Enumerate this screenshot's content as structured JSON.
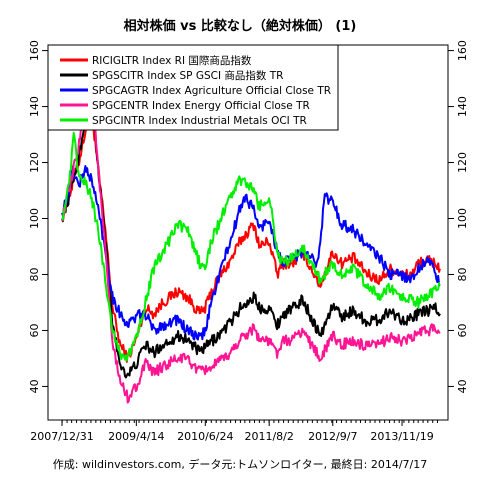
{
  "chart_data": {
    "type": "line",
    "title": "相対株価 vs 比較なし（絶対株価） (1)",
    "footer": "作成: wildinvestors.com, データ元:トムソンロイター, 最終日: 2014/7/17",
    "x_tick_labels": [
      "2007/12/31",
      "2009/4/14",
      "2010/6/24",
      "2011/8/2",
      "2012/9/7",
      "2013/11/19"
    ],
    "x_tick_dates": [
      "2007-12-31",
      "2009-04-14",
      "2010-06-24",
      "2011-08-02",
      "2012-09-07",
      "2013-11-19"
    ],
    "x_range": [
      "2007-12-31",
      "2014-07-17"
    ],
    "y_ticks": [
      40,
      60,
      80,
      100,
      120,
      140,
      160
    ],
    "ylim": [
      28,
      162
    ],
    "legend_position": "top-left",
    "grid": false,
    "series": [
      {
        "name": "RICIGLTR Index RI 国際商品指数",
        "color": "#ff0000",
        "points": [
          [
            "2007-12-31",
            100
          ],
          [
            "2008-02-15",
            108
          ],
          [
            "2008-04-15",
            120
          ],
          [
            "2008-06-01",
            133
          ],
          [
            "2008-07-03",
            140
          ],
          [
            "2008-08-15",
            118
          ],
          [
            "2008-10-01",
            95
          ],
          [
            "2008-11-15",
            68
          ],
          [
            "2009-01-01",
            55
          ],
          [
            "2009-02-19",
            50
          ],
          [
            "2009-04-14",
            57
          ],
          [
            "2009-06-10",
            68
          ],
          [
            "2009-08-01",
            66
          ],
          [
            "2009-10-01",
            70
          ],
          [
            "2010-01-01",
            74
          ],
          [
            "2010-03-01",
            72
          ],
          [
            "2010-05-20",
            66
          ],
          [
            "2010-06-24",
            68
          ],
          [
            "2010-08-01",
            74
          ],
          [
            "2010-10-01",
            80
          ],
          [
            "2010-12-01",
            85
          ],
          [
            "2011-02-01",
            92
          ],
          [
            "2011-04-29",
            98
          ],
          [
            "2011-06-01",
            90
          ],
          [
            "2011-08-02",
            92
          ],
          [
            "2011-09-22",
            80
          ],
          [
            "2011-11-01",
            84
          ],
          [
            "2012-01-01",
            84
          ],
          [
            "2012-03-01",
            88
          ],
          [
            "2012-06-20",
            76
          ],
          [
            "2012-09-07",
            88
          ],
          [
            "2012-11-01",
            84
          ],
          [
            "2013-01-15",
            86
          ],
          [
            "2013-04-15",
            80
          ],
          [
            "2013-07-01",
            78
          ],
          [
            "2013-09-01",
            82
          ],
          [
            "2013-11-19",
            80
          ],
          [
            "2014-01-15",
            80
          ],
          [
            "2014-03-01",
            84
          ],
          [
            "2014-05-01",
            85
          ],
          [
            "2014-06-20",
            84
          ],
          [
            "2014-07-17",
            82
          ]
        ]
      },
      {
        "name": "SPGSCITR Index SP GSCI 商品指数 TR",
        "color": "#000000",
        "points": [
          [
            "2007-12-31",
            100
          ],
          [
            "2008-02-15",
            108
          ],
          [
            "2008-04-15",
            122
          ],
          [
            "2008-06-01",
            138
          ],
          [
            "2008-07-03",
            148
          ],
          [
            "2008-08-15",
            118
          ],
          [
            "2008-10-01",
            92
          ],
          [
            "2008-11-15",
            62
          ],
          [
            "2009-01-01",
            48
          ],
          [
            "2009-02-19",
            44
          ],
          [
            "2009-04-14",
            48
          ],
          [
            "2009-06-10",
            55
          ],
          [
            "2009-08-01",
            52
          ],
          [
            "2009-10-01",
            55
          ],
          [
            "2010-01-01",
            58
          ],
          [
            "2010-03-01",
            57
          ],
          [
            "2010-05-20",
            52
          ],
          [
            "2010-06-24",
            54
          ],
          [
            "2010-08-01",
            56
          ],
          [
            "2010-10-01",
            59
          ],
          [
            "2010-12-01",
            63
          ],
          [
            "2011-02-01",
            68
          ],
          [
            "2011-04-29",
            72
          ],
          [
            "2011-06-01",
            68
          ],
          [
            "2011-08-02",
            68
          ],
          [
            "2011-09-22",
            62
          ],
          [
            "2011-11-01",
            66
          ],
          [
            "2012-01-01",
            68
          ],
          [
            "2012-03-01",
            71
          ],
          [
            "2012-06-20",
            58
          ],
          [
            "2012-09-07",
            69
          ],
          [
            "2012-11-01",
            65
          ],
          [
            "2013-01-15",
            67
          ],
          [
            "2013-04-15",
            63
          ],
          [
            "2013-07-01",
            64
          ],
          [
            "2013-09-01",
            67
          ],
          [
            "2013-11-19",
            64
          ],
          [
            "2014-01-15",
            64
          ],
          [
            "2014-03-01",
            66
          ],
          [
            "2014-05-01",
            67
          ],
          [
            "2014-06-20",
            68
          ],
          [
            "2014-07-17",
            66
          ]
        ]
      },
      {
        "name": "SPGCAGTR Index Agriculture Official Close TR",
        "color": "#0000ff",
        "points": [
          [
            "2007-12-31",
            102
          ],
          [
            "2008-02-15",
            110
          ],
          [
            "2008-03-01",
            118
          ],
          [
            "2008-04-15",
            112
          ],
          [
            "2008-06-01",
            118
          ],
          [
            "2008-07-03",
            114
          ],
          [
            "2008-08-15",
            104
          ],
          [
            "2008-10-01",
            88
          ],
          [
            "2008-11-15",
            72
          ],
          [
            "2009-01-01",
            66
          ],
          [
            "2009-02-19",
            62
          ],
          [
            "2009-04-14",
            65
          ],
          [
            "2009-06-10",
            66
          ],
          [
            "2009-08-01",
            60
          ],
          [
            "2009-10-01",
            62
          ],
          [
            "2010-01-01",
            64
          ],
          [
            "2010-03-01",
            60
          ],
          [
            "2010-05-20",
            57
          ],
          [
            "2010-06-24",
            60
          ],
          [
            "2010-08-01",
            70
          ],
          [
            "2010-10-01",
            82
          ],
          [
            "2010-12-01",
            92
          ],
          [
            "2011-02-01",
            104
          ],
          [
            "2011-03-01",
            108
          ],
          [
            "2011-04-29",
            103
          ],
          [
            "2011-06-01",
            96
          ],
          [
            "2011-08-02",
            100
          ],
          [
            "2011-09-22",
            88
          ],
          [
            "2011-11-01",
            84
          ],
          [
            "2012-01-01",
            86
          ],
          [
            "2012-03-01",
            88
          ],
          [
            "2012-06-01",
            84
          ],
          [
            "2012-07-20",
            108
          ],
          [
            "2012-09-07",
            106
          ],
          [
            "2012-11-01",
            98
          ],
          [
            "2013-01-15",
            96
          ],
          [
            "2013-04-15",
            90
          ],
          [
            "2013-07-01",
            86
          ],
          [
            "2013-09-01",
            80
          ],
          [
            "2013-11-19",
            80
          ],
          [
            "2014-01-15",
            78
          ],
          [
            "2014-03-01",
            82
          ],
          [
            "2014-05-01",
            86
          ],
          [
            "2014-06-20",
            80
          ],
          [
            "2014-07-17",
            76
          ]
        ]
      },
      {
        "name": "SPGCENTR Index Energy Official Close TR",
        "color": "#ff1493",
        "points": [
          [
            "2007-12-31",
            100
          ],
          [
            "2008-02-15",
            110
          ],
          [
            "2008-04-15",
            126
          ],
          [
            "2008-06-01",
            142
          ],
          [
            "2008-07-03",
            150
          ],
          [
            "2008-08-15",
            118
          ],
          [
            "2008-10-01",
            88
          ],
          [
            "2008-11-15",
            55
          ],
          [
            "2009-01-01",
            42
          ],
          [
            "2009-02-19",
            36
          ],
          [
            "2009-04-14",
            40
          ],
          [
            "2009-06-10",
            48
          ],
          [
            "2009-08-01",
            45
          ],
          [
            "2009-10-01",
            47
          ],
          [
            "2010-01-01",
            50
          ],
          [
            "2010-03-01",
            50
          ],
          [
            "2010-05-20",
            45
          ],
          [
            "2010-06-24",
            46
          ],
          [
            "2010-08-01",
            47
          ],
          [
            "2010-10-01",
            49
          ],
          [
            "2010-12-01",
            52
          ],
          [
            "2011-02-01",
            57
          ],
          [
            "2011-04-29",
            61
          ],
          [
            "2011-06-01",
            57
          ],
          [
            "2011-08-02",
            56
          ],
          [
            "2011-09-22",
            52
          ],
          [
            "2011-11-01",
            56
          ],
          [
            "2012-01-01",
            57
          ],
          [
            "2012-03-01",
            60
          ],
          [
            "2012-06-20",
            50
          ],
          [
            "2012-09-07",
            58
          ],
          [
            "2012-11-01",
            55
          ],
          [
            "2013-01-15",
            56
          ],
          [
            "2013-04-15",
            54
          ],
          [
            "2013-07-01",
            55
          ],
          [
            "2013-09-01",
            58
          ],
          [
            "2013-11-19",
            56
          ],
          [
            "2014-01-15",
            57
          ],
          [
            "2014-03-01",
            59
          ],
          [
            "2014-05-01",
            60
          ],
          [
            "2014-06-20",
            61
          ],
          [
            "2014-07-17",
            59
          ]
        ]
      },
      {
        "name": "SPGCINTR Index Industrial Metals OCI TR",
        "color": "#00ee00",
        "points": [
          [
            "2007-12-31",
            100
          ],
          [
            "2008-02-15",
            112
          ],
          [
            "2008-03-15",
            130
          ],
          [
            "2008-04-15",
            115
          ],
          [
            "2008-06-01",
            112
          ],
          [
            "2008-07-03",
            108
          ],
          [
            "2008-08-15",
            96
          ],
          [
            "2008-10-01",
            78
          ],
          [
            "2008-11-15",
            60
          ],
          [
            "2009-01-01",
            52
          ],
          [
            "2009-02-19",
            50
          ],
          [
            "2009-04-14",
            58
          ],
          [
            "2009-06-10",
            70
          ],
          [
            "2009-08-01",
            82
          ],
          [
            "2009-10-01",
            88
          ],
          [
            "2010-01-01",
            98
          ],
          [
            "2010-03-01",
            96
          ],
          [
            "2010-05-20",
            84
          ],
          [
            "2010-06-24",
            82
          ],
          [
            "2010-08-01",
            92
          ],
          [
            "2010-10-01",
            100
          ],
          [
            "2010-12-01",
            108
          ],
          [
            "2011-02-01",
            114
          ],
          [
            "2011-04-29",
            110
          ],
          [
            "2011-06-01",
            104
          ],
          [
            "2011-08-02",
            108
          ],
          [
            "2011-09-22",
            88
          ],
          [
            "2011-11-01",
            84
          ],
          [
            "2012-01-01",
            86
          ],
          [
            "2012-03-01",
            90
          ],
          [
            "2012-06-20",
            78
          ],
          [
            "2012-09-07",
            84
          ],
          [
            "2012-11-01",
            80
          ],
          [
            "2013-01-15",
            82
          ],
          [
            "2013-04-15",
            76
          ],
          [
            "2013-07-01",
            72
          ],
          [
            "2013-09-01",
            75
          ],
          [
            "2013-11-19",
            72
          ],
          [
            "2014-01-15",
            71
          ],
          [
            "2014-03-01",
            70
          ],
          [
            "2014-05-01",
            72
          ],
          [
            "2014-06-20",
            75
          ],
          [
            "2014-07-17",
            77
          ]
        ]
      }
    ]
  }
}
